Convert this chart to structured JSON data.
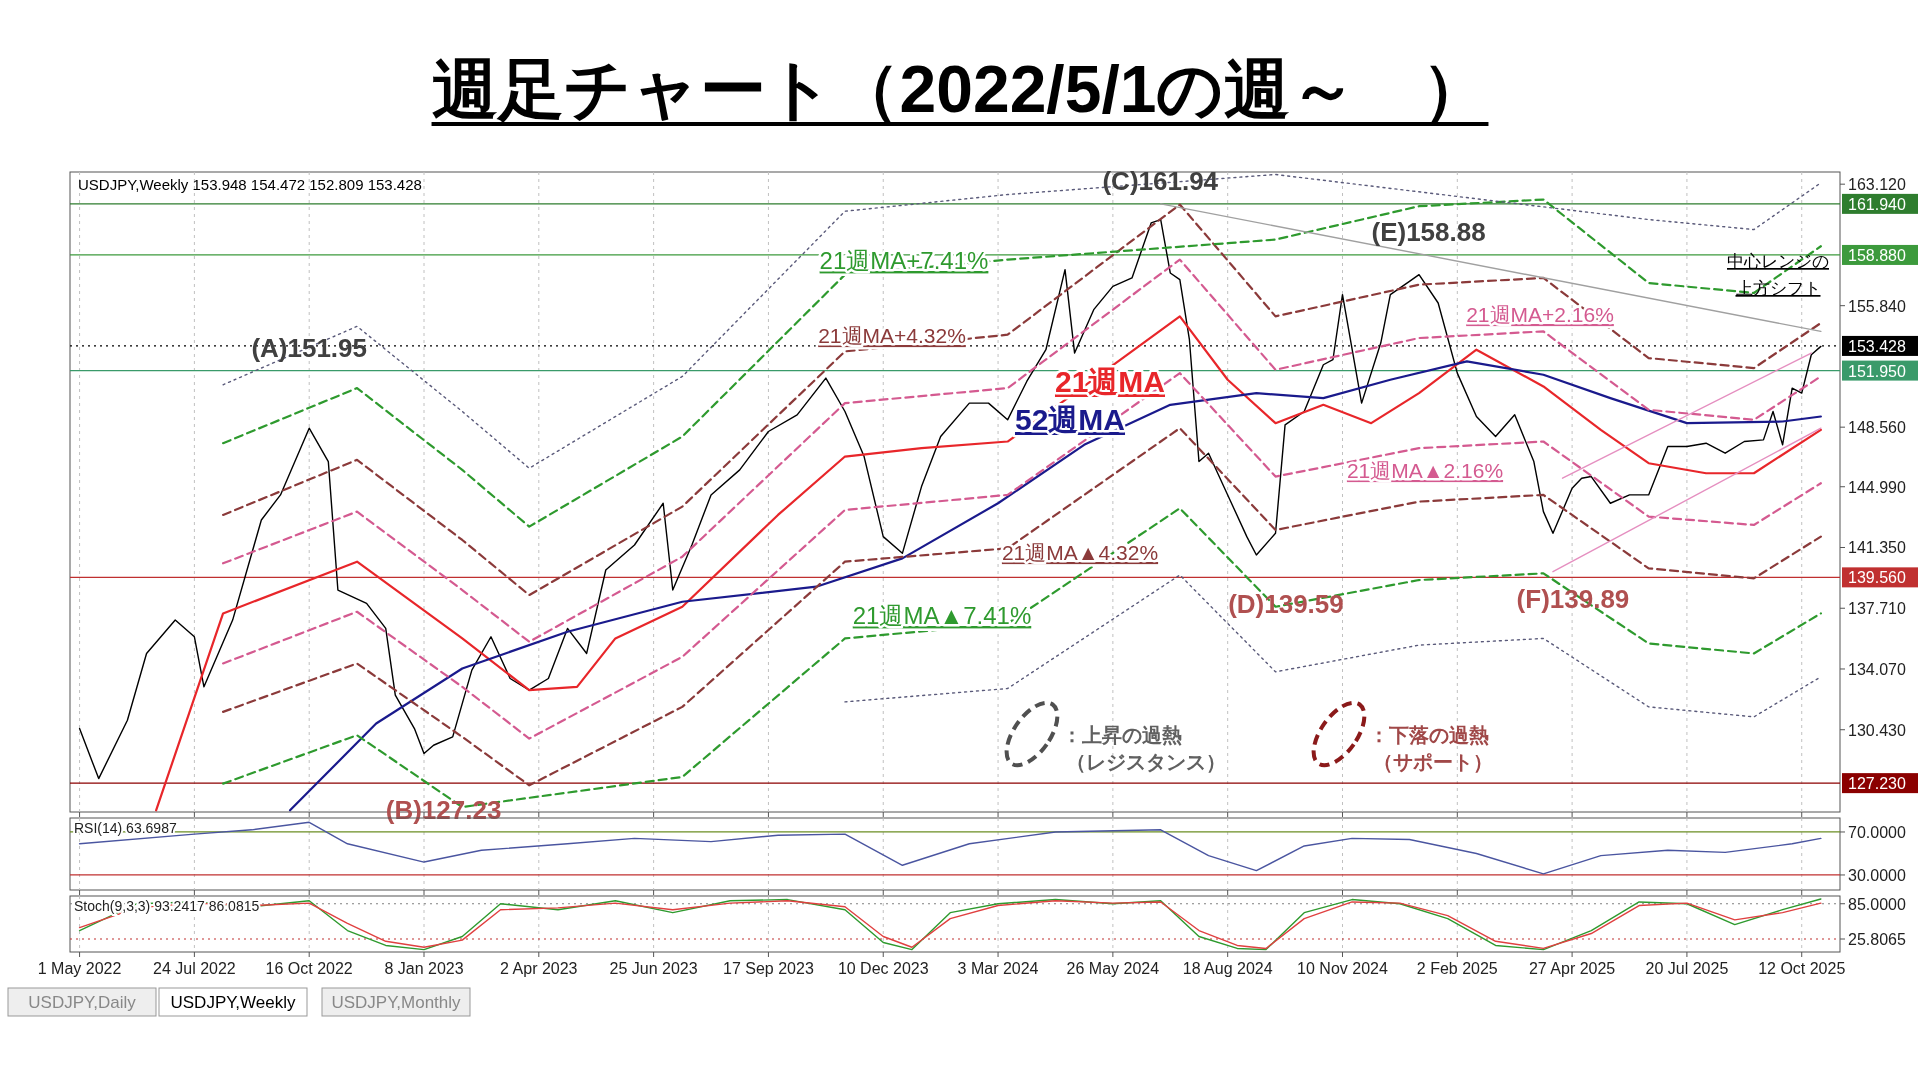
{
  "chart_data": [
    {
      "type": "line",
      "title": "週足チャート（2022/5/1の週～　）",
      "xlim": [
        "2022-04-24",
        "2025-11-09"
      ],
      "ylim": [
        125.5,
        163.85
      ],
      "tick_labels": "y",
      "grid": "x",
      "xticks": [
        {
          "value": "2022-05-01",
          "label": null
        },
        {
          "value": "2022-07-24",
          "label": null
        },
        {
          "value": "2022-10-16",
          "label": null
        },
        {
          "value": "2023-01-08",
          "label": null
        },
        {
          "value": "2023-04-02",
          "label": null
        },
        {
          "value": "2023-06-25",
          "label": null
        },
        {
          "value": "2023-09-17",
          "label": null
        },
        {
          "value": "2023-12-10",
          "label": null
        },
        {
          "value": "2024-03-03",
          "label": null
        },
        {
          "value": "2024-05-26",
          "label": null
        },
        {
          "value": "2024-08-18",
          "label": null
        },
        {
          "value": "2024-11-10",
          "label": null
        },
        {
          "value": "2025-02-02",
          "label": null
        },
        {
          "value": "2025-04-27",
          "label": null
        },
        {
          "value": "2025-07-20",
          "label": null
        },
        {
          "value": "2025-10-12",
          "label": null
        }
      ],
      "yticks": [
        {
          "value": 163.12,
          "label": "163.120"
        },
        {
          "value": 155.84,
          "label": "155.840"
        },
        {
          "value": 148.56,
          "label": "148.560"
        },
        {
          "value": 144.99,
          "label": "144.990"
        },
        {
          "value": 141.35,
          "label": "141.350"
        },
        {
          "value": 137.71,
          "label": "137.710"
        },
        {
          "value": 134.07,
          "label": "134.070"
        },
        {
          "value": 130.43,
          "label": "130.430"
        }
      ],
      "series": [
        {
          "color": "#000000",
          "line_style": "solid",
          "x": [
            "2022-05-01",
            "2022-05-15",
            "2022-06-05",
            "2022-06-19",
            "2022-07-10",
            "2022-07-24",
            "2022-07-31",
            "2022-08-21",
            "2022-09-11",
            "2022-09-25",
            "2022-10-16",
            "2022-10-30",
            "2022-11-06",
            "2022-11-27",
            "2022-12-11",
            "2022-12-18",
            "2023-01-01",
            "2023-01-08",
            "2023-01-15",
            "2023-01-29",
            "2023-02-12",
            "2023-02-26",
            "2023-03-12",
            "2023-03-26",
            "2023-04-09",
            "2023-04-23",
            "2023-05-07",
            "2023-05-21",
            "2023-06-11",
            "2023-07-02",
            "2023-07-09",
            "2023-07-23",
            "2023-08-06",
            "2023-08-27",
            "2023-09-17",
            "2023-10-08",
            "2023-10-29",
            "2023-11-12",
            "2023-11-26",
            "2023-12-10",
            "2023-12-24",
            "2024-01-07",
            "2024-01-21",
            "2024-02-11",
            "2024-02-25",
            "2024-03-10",
            "2024-03-24",
            "2024-04-07",
            "2024-04-21",
            "2024-04-28",
            "2024-05-12",
            "2024-05-26",
            "2024-06-09",
            "2024-06-23",
            "2024-06-30",
            "2024-07-07",
            "2024-07-14",
            "2024-07-21",
            "2024-07-28",
            "2024-08-04",
            "2024-08-18",
            "2024-09-01",
            "2024-09-08",
            "2024-09-22",
            "2024-09-29",
            "2024-10-13",
            "2024-10-27",
            "2024-11-03",
            "2024-11-10",
            "2024-11-24",
            "2024-12-08",
            "2024-12-15",
            "2024-12-29",
            "2025-01-05",
            "2025-01-19",
            "2025-02-02",
            "2025-02-16",
            "2025-03-02",
            "2025-03-16",
            "2025-03-30",
            "2025-04-06",
            "2025-04-13",
            "2025-04-27",
            "2025-05-04",
            "2025-05-11",
            "2025-05-25",
            "2025-06-08",
            "2025-06-22",
            "2025-07-06",
            "2025-07-20",
            "2025-08-03",
            "2025-08-17",
            "2025-08-31",
            "2025-09-14",
            "2025-09-21",
            "2025-09-28",
            "2025-10-05",
            "2025-10-12",
            "2025-10-19",
            "2025-10-26"
          ],
          "values": [
            130.5,
            127.5,
            131,
            135,
            137,
            136,
            133,
            137,
            143,
            144.5,
            148.5,
            146.5,
            138.8,
            138,
            136.5,
            132.5,
            130.5,
            129,
            129.5,
            130,
            134,
            136,
            133.5,
            132.8,
            133.5,
            136.5,
            135,
            140,
            141.5,
            144,
            138.8,
            141.5,
            144.5,
            146,
            148.3,
            149.3,
            151.5,
            149.5,
            146.8,
            142,
            141,
            145,
            148,
            150,
            150,
            149,
            151.3,
            153.2,
            158,
            153,
            155.6,
            157,
            157.5,
            160.8,
            161,
            157.8,
            157.4,
            153.8,
            146.5,
            147,
            144.5,
            142,
            140.9,
            142.2,
            148.7,
            149.5,
            152.3,
            152.6,
            156.5,
            150,
            153.6,
            156.5,
            157.3,
            157.7,
            156,
            151.8,
            149.2,
            148,
            149.3,
            146.5,
            143.5,
            142.2,
            144.9,
            145.5,
            145.6,
            144,
            144.5,
            144.5,
            147.4,
            147.4,
            147.6,
            147,
            147.7,
            147.8,
            149.5,
            147.5,
            150.9,
            150.6,
            152.9,
            153.4
          ]
        },
        {
          "name": "21週MA",
          "color": "#e8262a",
          "line_style": "solid",
          "x": [
            "2022-06-26",
            "2022-08-14",
            "2022-11-20",
            "2023-02-05",
            "2023-03-26",
            "2023-04-30",
            "2023-05-28",
            "2023-07-16",
            "2023-09-24",
            "2023-11-12",
            "2024-01-07",
            "2024-03-10",
            "2024-04-28",
            "2024-07-14",
            "2024-08-18",
            "2024-09-22",
            "2024-10-27",
            "2024-12-01",
            "2025-01-05",
            "2025-02-16",
            "2025-04-06",
            "2025-05-18",
            "2025-06-22",
            "2025-08-03",
            "2025-09-07",
            "2025-10-26"
          ],
          "values": [
            125.6,
            137.4,
            140.5,
            135.9,
            132.8,
            133.0,
            135.9,
            137.8,
            143.3,
            146.8,
            147.3,
            147.7,
            150.6,
            155.2,
            151.4,
            148.8,
            149.9,
            148.8,
            150.6,
            153.2,
            151.0,
            148.4,
            146.4,
            145.8,
            145.8,
            148.4
          ]
        },
        {
          "name": "52週MA",
          "color": "#1a1a8c",
          "line_style": "solid",
          "x": [
            "2022-10-02",
            "2022-12-04",
            "2023-02-05",
            "2023-04-23",
            "2023-07-16",
            "2023-10-22",
            "2023-12-24",
            "2024-03-03",
            "2024-05-05",
            "2024-07-07",
            "2024-09-08",
            "2024-10-27",
            "2024-12-15",
            "2025-02-09",
            "2025-04-06",
            "2025-05-25",
            "2025-07-20",
            "2025-09-28",
            "2025-10-26"
          ],
          "values": [
            125.6,
            130.8,
            134.1,
            136.3,
            138.1,
            139.0,
            140.7,
            144.0,
            147.5,
            149.9,
            150.6,
            150.3,
            151.4,
            152.5,
            151.7,
            150.3,
            148.8,
            148.9,
            149.2
          ]
        },
        {
          "name": "21週MA+2.16%",
          "color": "#d45a90",
          "line_style": "dashed",
          "x": [
            "2022-08-14",
            "2022-11-20",
            "2023-02-05",
            "2023-03-26",
            "2023-07-16",
            "2023-11-12",
            "2024-03-10",
            "2024-07-14",
            "2024-09-22",
            "2025-01-05",
            "2025-04-06",
            "2025-06-22",
            "2025-09-07",
            "2025-10-26"
          ],
          "values": [
            140.4,
            143.5,
            138.8,
            135.7,
            140.8,
            150.0,
            150.9,
            158.6,
            152.0,
            153.9,
            154.3,
            149.6,
            149.0,
            151.6
          ]
        },
        {
          "name": "21週MA▲2.16%",
          "color": "#d45a90",
          "line_style": "dashed",
          "x": [
            "2022-08-14",
            "2022-11-20",
            "2023-02-05",
            "2023-03-26",
            "2023-07-16",
            "2023-11-12",
            "2024-03-10",
            "2024-07-14",
            "2024-09-22",
            "2025-01-05",
            "2025-04-06",
            "2025-06-22",
            "2025-09-07",
            "2025-10-26"
          ],
          "values": [
            134.4,
            137.5,
            133.0,
            129.9,
            134.8,
            143.6,
            144.5,
            151.8,
            145.6,
            147.3,
            147.7,
            143.2,
            142.7,
            145.2
          ]
        },
        {
          "name": "21週MA+4.32%",
          "color": "#8b3a3a",
          "line_style": "dashed",
          "x": [
            "2022-08-14",
            "2022-11-20",
            "2023-02-05",
            "2023-03-26",
            "2023-07-16",
            "2023-11-12",
            "2024-03-10",
            "2024-07-14",
            "2024-09-22",
            "2025-01-05",
            "2025-04-06",
            "2025-06-22",
            "2025-09-07",
            "2025-10-26"
          ],
          "values": [
            143.3,
            146.6,
            141.8,
            138.5,
            143.8,
            153.1,
            154.1,
            161.9,
            155.2,
            157.1,
            157.5,
            152.7,
            152.1,
            154.8
          ]
        },
        {
          "name": "21週MA▲4.32%",
          "color": "#8b3a3a",
          "line_style": "dashed",
          "x": [
            "2022-08-14",
            "2022-11-20",
            "2023-02-05",
            "2023-03-26",
            "2023-07-16",
            "2023-11-12",
            "2024-03-10",
            "2024-07-14",
            "2024-09-22",
            "2025-01-05",
            "2025-04-06",
            "2025-06-22",
            "2025-09-07",
            "2025-10-26"
          ],
          "values": [
            131.5,
            134.4,
            130.0,
            127.1,
            131.8,
            140.5,
            141.3,
            148.5,
            142.4,
            144.1,
            144.5,
            140.1,
            139.5,
            142.0
          ]
        },
        {
          "name": "21週MA+7.41%",
          "color": "#2e9a2e",
          "line_style": "dashed",
          "x": [
            "2022-08-14",
            "2022-11-20",
            "2023-02-05",
            "2023-03-26",
            "2023-07-16",
            "2023-11-12",
            "2024-03-10",
            "2024-09-22",
            "2025-01-05",
            "2025-04-06",
            "2025-06-22",
            "2025-09-07",
            "2025-10-26"
          ],
          "values": [
            147.6,
            150.9,
            146.0,
            142.6,
            148.0,
            157.7,
            158.6,
            159.8,
            161.8,
            162.2,
            157.2,
            156.6,
            159.4
          ]
        },
        {
          "name": "21週MA▲7.41%",
          "color": "#2e9a2e",
          "line_style": "dashed",
          "x": [
            "2022-08-14",
            "2022-11-20",
            "2023-02-05",
            "2023-07-16",
            "2023-11-12",
            "2024-03-10",
            "2024-07-14",
            "2024-09-22",
            "2025-01-05",
            "2025-04-06",
            "2025-06-22",
            "2025-09-07",
            "2025-10-26"
          ],
          "values": [
            127.2,
            130.1,
            125.8,
            127.6,
            135.9,
            136.8,
            143.7,
            137.8,
            139.4,
            139.8,
            135.6,
            135.0,
            137.4
          ]
        },
        {
          "color": "#5a5a7a",
          "line_style": "dotted",
          "x": [
            "2022-08-14",
            "2022-11-20",
            "2023-02-05",
            "2023-03-26",
            "2023-07-16",
            "2023-11-12",
            "2024-03-10",
            "2024-09-22",
            "2025-06-22",
            "2025-09-07",
            "2025-10-26"
          ],
          "values": [
            151.1,
            154.6,
            149.5,
            146.1,
            151.6,
            161.5,
            162.5,
            163.7,
            161.0,
            160.4,
            163.2
          ]
        },
        {
          "color": "#5a5a7a",
          "line_style": "dotted",
          "x": [
            "2023-11-12",
            "2024-03-10",
            "2024-07-14",
            "2024-09-22",
            "2025-01-05",
            "2025-04-06",
            "2025-06-22",
            "2025-09-07",
            "2025-10-26"
          ],
          "values": [
            132.1,
            132.9,
            139.7,
            133.9,
            135.5,
            135.9,
            131.8,
            131.2,
            133.6
          ]
        },
        {
          "color": "#a0a0a0",
          "line_style": "solid",
          "x": [
            "2024-06-30",
            "2025-10-26"
          ],
          "values": [
            161.94,
            154.3
          ]
        },
        {
          "color": "#e58fc0",
          "line_style": "solid",
          "x": [
            "2025-04-13",
            "2025-10-26"
          ],
          "values": [
            139.9,
            148.5
          ]
        },
        {
          "color": "#e58fc0",
          "line_style": "solid",
          "x": [
            "2025-04-20",
            "2025-10-19"
          ],
          "values": [
            145.5,
            153.0
          ]
        }
      ],
      "ref_lines": [
        {
          "axis": "y",
          "value": 161.94,
          "label": "161.940",
          "color": "#2e7d2e"
        },
        {
          "axis": "y",
          "value": 158.88,
          "label": "158.880",
          "color": "#3c9a3c"
        },
        {
          "axis": "y",
          "value": 153.428,
          "label": "153.428",
          "color": "#000000",
          "line_style": "dotted"
        },
        {
          "axis": "y",
          "value": 151.95,
          "label": "151.950",
          "color": "#3a9a6a"
        },
        {
          "axis": "y",
          "value": 139.56,
          "label": "139.560",
          "color": "#c03030"
        },
        {
          "axis": "y",
          "value": 127.23,
          "label": "127.230",
          "color": "#8b0000"
        }
      ],
      "annotations": [
        "USDJPY,Weekly  153.948 154.472 152.809 153.428",
        {
          "text": "(A)151.95",
          "x": "2022-10-16",
          "y": 151.95
        },
        {
          "text": "(B)127.23",
          "x": "2023-01-15",
          "y": 127.23
        },
        {
          "text": "(C)161.94",
          "x": "2024-07-07",
          "y": 161.94
        },
        {
          "text": "(D)139.59",
          "x": "2024-09-15",
          "y": 139.59
        },
        {
          "text": "(E)158.88",
          "x": "2025-01-12",
          "y": 158.88
        },
        {
          "text": "(F)139.89",
          "x": "2025-04-13",
          "y": 139.89
        },
        "中心レンジの上方シフト",
        "：上昇の過熱（レジスタンス）",
        "：下落の過熱（サポート）",
        "USDJPY,Daily",
        "USDJPY,Weekly",
        "USDJPY,Monthly"
      ]
    },
    {
      "type": "line",
      "title": "RSI(14) 63.6987",
      "xlim": [
        "2022-04-24",
        "2025-11-09"
      ],
      "ylim": [
        16,
        83
      ],
      "tick_labels": "y",
      "grid": "x",
      "xticks": [
        {
          "value": "2022-05-01",
          "label": null
        },
        {
          "value": "2022-07-24",
          "label": null
        },
        {
          "value": "2022-10-16",
          "label": null
        },
        {
          "value": "2023-01-08",
          "label": null
        },
        {
          "value": "2023-04-02",
          "label": null
        },
        {
          "value": "2023-06-25",
          "label": null
        },
        {
          "value": "2023-09-17",
          "label": null
        },
        {
          "value": "2023-12-10",
          "label": null
        },
        {
          "value": "2024-03-03",
          "label": null
        },
        {
          "value": "2024-05-26",
          "label": null
        },
        {
          "value": "2024-08-18",
          "label": null
        },
        {
          "value": "2024-11-10",
          "label": null
        },
        {
          "value": "2025-02-02",
          "label": null
        },
        {
          "value": "2025-04-27",
          "label": null
        },
        {
          "value": "2025-07-20",
          "label": null
        },
        {
          "value": "2025-10-12",
          "label": null
        }
      ],
      "yticks": [
        {
          "value": 70,
          "label": "70.0000"
        },
        {
          "value": 30,
          "label": "30.0000"
        }
      ],
      "series": [
        {
          "color": "#4a55a0",
          "line_style": "solid",
          "x": [
            "2022-05-01",
            "2022-07-24",
            "2022-09-04",
            "2022-10-16",
            "2022-11-13",
            "2023-01-08",
            "2023-02-19",
            "2023-04-23",
            "2023-06-11",
            "2023-08-06",
            "2023-09-24",
            "2023-11-12",
            "2023-12-24",
            "2024-02-11",
            "2024-04-14",
            "2024-06-30",
            "2024-08-04",
            "2024-09-08",
            "2024-10-13",
            "2024-11-17",
            "2024-12-29",
            "2025-02-16",
            "2025-04-06",
            "2025-05-18",
            "2025-07-06",
            "2025-08-17",
            "2025-10-05",
            "2025-10-26"
          ],
          "values": [
            59,
            68,
            72,
            79,
            59,
            42,
            53,
            59,
            64,
            61,
            67,
            68,
            39,
            59,
            70,
            72,
            48,
            34,
            57,
            64,
            63,
            50,
            31,
            48,
            53,
            51,
            59,
            64
          ]
        }
      ],
      "ref_lines": [
        {
          "axis": "y",
          "value": 70,
          "color": "#6b8e23"
        },
        {
          "axis": "y",
          "value": 30,
          "color": "#c03030"
        }
      ]
    },
    {
      "type": "line",
      "title": "Stoch(9,3,3) 93.2417 86.0815",
      "xlim": [
        "2022-04-24",
        "2025-11-09"
      ],
      "ylim": [
        4,
        98
      ],
      "grid": "x",
      "xticks": [
        {
          "value": "2022-05-01",
          "label": "1 May 2022"
        },
        {
          "value": "2022-07-24",
          "label": "24 Jul 2022"
        },
        {
          "value": "2022-10-16",
          "label": "16 Oct 2022"
        },
        {
          "value": "2023-01-08",
          "label": "8 Jan 2023"
        },
        {
          "value": "2023-04-02",
          "label": "2 Apr 2023"
        },
        {
          "value": "2023-06-25",
          "label": "25 Jun 2023"
        },
        {
          "value": "2023-09-17",
          "label": "17 Sep 2023"
        },
        {
          "value": "2023-12-10",
          "label": "10 Dec 2023"
        },
        {
          "value": "2024-03-03",
          "label": "3 Mar 2024"
        },
        {
          "value": "2024-05-26",
          "label": "26 May 2024"
        },
        {
          "value": "2024-08-18",
          "label": "18 Aug 2024"
        },
        {
          "value": "2024-11-10",
          "label": "10 Nov 2024"
        },
        {
          "value": "2025-02-02",
          "label": "2 Feb 2025"
        },
        {
          "value": "2025-04-27",
          "label": "27 Apr 2025"
        },
        {
          "value": "2025-07-20",
          "label": "20 Jul 2025"
        },
        {
          "value": "2025-10-12",
          "label": "12 Oct 2025"
        }
      ],
      "yticks": [
        {
          "value": 85,
          "label": "85.0000"
        },
        {
          "value": 25.8065,
          "label": "25.8065"
        }
      ],
      "x": [
        "2022-05-01",
        "2022-06-12",
        "2022-07-24",
        "2022-09-04",
        "2022-10-16",
        "2022-11-13",
        "2022-12-11",
        "2023-01-08",
        "2023-02-05",
        "2023-03-05",
        "2023-04-16",
        "2023-05-28",
        "2023-07-09",
        "2023-08-20",
        "2023-10-01",
        "2023-11-12",
        "2023-12-10",
        "2023-12-31",
        "2024-01-28",
        "2024-03-03",
        "2024-04-14",
        "2024-05-26",
        "2024-06-30",
        "2024-07-28",
        "2024-08-25",
        "2024-09-15",
        "2024-10-13",
        "2024-11-17",
        "2024-12-22",
        "2025-01-26",
        "2025-03-02",
        "2025-04-06",
        "2025-05-11",
        "2025-06-15",
        "2025-07-20",
        "2025-08-24",
        "2025-09-28",
        "2025-10-26"
      ],
      "series": [
        {
          "color": "#2e9a2e",
          "line_style": "solid",
          "values": [
            40,
            85,
            88,
            80,
            90,
            40,
            15,
            8,
            30,
            85,
            75,
            90,
            70,
            90,
            92,
            75,
            20,
            8,
            70,
            85,
            92,
            85,
            90,
            30,
            10,
            8,
            70,
            92,
            85,
            60,
            15,
            8,
            40,
            88,
            85,
            50,
            75,
            93
          ]
        },
        {
          "color": "#e04040",
          "line_style": "solid",
          "values": [
            45,
            78,
            86,
            82,
            86,
            52,
            22,
            12,
            24,
            75,
            78,
            86,
            75,
            86,
            90,
            80,
            30,
            12,
            60,
            82,
            90,
            86,
            88,
            40,
            15,
            10,
            60,
            88,
            86,
            65,
            22,
            10,
            35,
            82,
            86,
            58,
            70,
            86
          ]
        }
      ],
      "ref_lines": [
        {
          "axis": "y",
          "value": 85,
          "color": "#808080",
          "line_style": "dotted"
        },
        {
          "axis": "y",
          "value": 25.8065,
          "color": "#c03030",
          "line_style": "dotted"
        }
      ]
    }
  ]
}
